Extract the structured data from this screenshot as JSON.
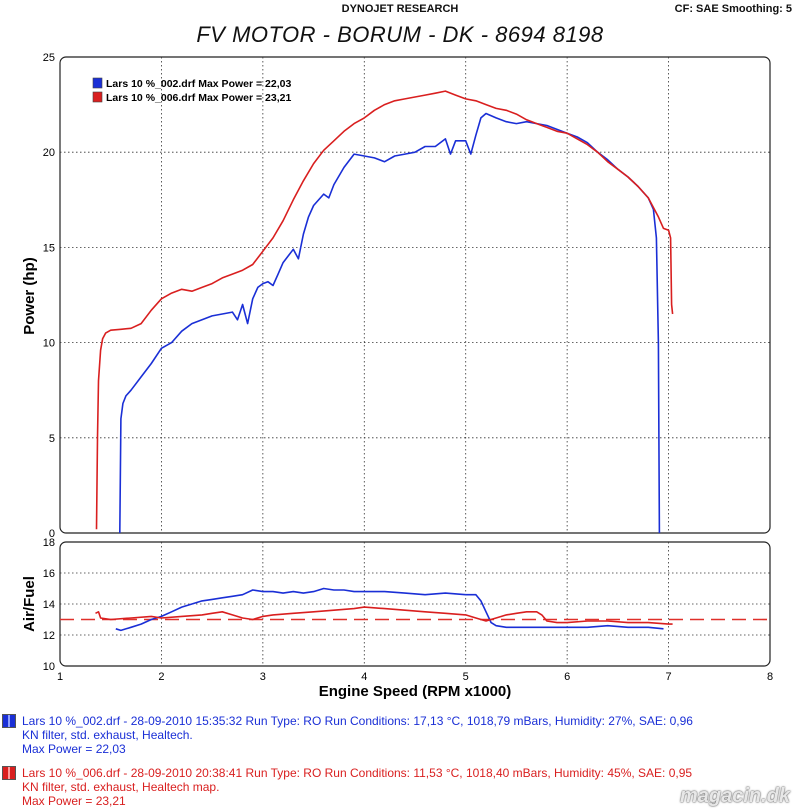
{
  "header": {
    "center": "DYNOJET RESEARCH",
    "right": "CF: SAE  Smoothing: 5"
  },
  "title": "FV MOTOR - BORUM - DK - 8694 8198",
  "colors": {
    "blue": "#1a2fd6",
    "red": "#d91f1f",
    "afr_ref": "#e0302a"
  },
  "legend": [
    {
      "label": "Lars 10 %_002.drf Max Power = 22,03",
      "color": "#1a2fd6"
    },
    {
      "label": "Lars 10 %_006.drf Max Power = 23,21",
      "color": "#d91f1f"
    }
  ],
  "chart_data": [
    {
      "type": "line",
      "ylabel": "Power (hp)",
      "xlim": [
        1,
        8
      ],
      "ylim": [
        0,
        25
      ],
      "yticks": [
        "0",
        "5",
        "10",
        "15",
        "20",
        "25"
      ],
      "grid": true,
      "legend_position": "top-left",
      "series": [
        {
          "name": "Lars 10 %_002.drf",
          "color": "#1a2fd6",
          "points": [
            [
              1.59,
              0
            ],
            [
              1.6,
              6.0
            ],
            [
              1.62,
              6.8
            ],
            [
              1.65,
              7.2
            ],
            [
              1.7,
              7.5
            ],
            [
              1.8,
              8.2
            ],
            [
              1.9,
              8.9
            ],
            [
              2.0,
              9.7
            ],
            [
              2.1,
              10.0
            ],
            [
              2.2,
              10.6
            ],
            [
              2.3,
              11.0
            ],
            [
              2.4,
              11.2
            ],
            [
              2.5,
              11.4
            ],
            [
              2.6,
              11.5
            ],
            [
              2.7,
              11.6
            ],
            [
              2.75,
              11.2
            ],
            [
              2.8,
              12.0
            ],
            [
              2.85,
              11.0
            ],
            [
              2.9,
              12.3
            ],
            [
              2.95,
              12.9
            ],
            [
              3.0,
              13.1
            ],
            [
              3.05,
              13.2
            ],
            [
              3.1,
              13.0
            ],
            [
              3.15,
              13.6
            ],
            [
              3.2,
              14.2
            ],
            [
              3.3,
              14.9
            ],
            [
              3.35,
              14.4
            ],
            [
              3.4,
              15.7
            ],
            [
              3.45,
              16.6
            ],
            [
              3.5,
              17.2
            ],
            [
              3.6,
              17.8
            ],
            [
              3.65,
              17.6
            ],
            [
              3.7,
              18.3
            ],
            [
              3.8,
              19.2
            ],
            [
              3.9,
              19.9
            ],
            [
              4.0,
              19.8
            ],
            [
              4.1,
              19.7
            ],
            [
              4.2,
              19.5
            ],
            [
              4.3,
              19.8
            ],
            [
              4.4,
              19.9
            ],
            [
              4.5,
              20.0
            ],
            [
              4.6,
              20.3
            ],
            [
              4.7,
              20.3
            ],
            [
              4.8,
              20.7
            ],
            [
              4.85,
              19.9
            ],
            [
              4.9,
              20.6
            ],
            [
              5.0,
              20.6
            ],
            [
              5.05,
              19.9
            ],
            [
              5.1,
              20.9
            ],
            [
              5.15,
              21.8
            ],
            [
              5.2,
              22.03
            ],
            [
              5.3,
              21.8
            ],
            [
              5.4,
              21.6
            ],
            [
              5.5,
              21.5
            ],
            [
              5.6,
              21.6
            ],
            [
              5.7,
              21.5
            ],
            [
              5.8,
              21.4
            ],
            [
              5.9,
              21.2
            ],
            [
              6.0,
              21.0
            ],
            [
              6.1,
              20.8
            ],
            [
              6.2,
              20.5
            ],
            [
              6.3,
              20.0
            ],
            [
              6.4,
              19.6
            ],
            [
              6.5,
              19.1
            ],
            [
              6.6,
              18.7
            ],
            [
              6.7,
              18.2
            ],
            [
              6.8,
              17.6
            ],
            [
              6.85,
              17.0
            ],
            [
              6.88,
              15.5
            ],
            [
              6.9,
              10.0
            ],
            [
              6.91,
              0
            ]
          ]
        },
        {
          "name": "Lars 10 %_006.drf",
          "color": "#d91f1f",
          "points": [
            [
              1.36,
              0.2
            ],
            [
              1.37,
              5.0
            ],
            [
              1.38,
              8.0
            ],
            [
              1.4,
              9.6
            ],
            [
              1.42,
              10.2
            ],
            [
              1.45,
              10.5
            ],
            [
              1.5,
              10.65
            ],
            [
              1.6,
              10.7
            ],
            [
              1.7,
              10.75
            ],
            [
              1.8,
              11.0
            ],
            [
              1.9,
              11.7
            ],
            [
              2.0,
              12.3
            ],
            [
              2.1,
              12.6
            ],
            [
              2.2,
              12.8
            ],
            [
              2.3,
              12.7
            ],
            [
              2.4,
              12.9
            ],
            [
              2.5,
              13.1
            ],
            [
              2.6,
              13.4
            ],
            [
              2.7,
              13.6
            ],
            [
              2.8,
              13.8
            ],
            [
              2.9,
              14.1
            ],
            [
              3.0,
              14.8
            ],
            [
              3.1,
              15.5
            ],
            [
              3.2,
              16.4
            ],
            [
              3.3,
              17.5
            ],
            [
              3.4,
              18.5
            ],
            [
              3.5,
              19.4
            ],
            [
              3.6,
              20.1
            ],
            [
              3.7,
              20.6
            ],
            [
              3.8,
              21.1
            ],
            [
              3.9,
              21.5
            ],
            [
              4.0,
              21.8
            ],
            [
              4.1,
              22.2
            ],
            [
              4.2,
              22.5
            ],
            [
              4.3,
              22.7
            ],
            [
              4.4,
              22.8
            ],
            [
              4.5,
              22.9
            ],
            [
              4.6,
              23.0
            ],
            [
              4.7,
              23.1
            ],
            [
              4.8,
              23.21
            ],
            [
              4.9,
              23.0
            ],
            [
              5.0,
              22.8
            ],
            [
              5.1,
              22.7
            ],
            [
              5.2,
              22.5
            ],
            [
              5.3,
              22.3
            ],
            [
              5.4,
              22.2
            ],
            [
              5.5,
              22.0
            ],
            [
              5.6,
              21.7
            ],
            [
              5.7,
              21.5
            ],
            [
              5.8,
              21.3
            ],
            [
              5.9,
              21.1
            ],
            [
              6.0,
              21.0
            ],
            [
              6.1,
              20.7
            ],
            [
              6.2,
              20.4
            ],
            [
              6.3,
              20.0
            ],
            [
              6.4,
              19.5
            ],
            [
              6.5,
              19.1
            ],
            [
              6.6,
              18.7
            ],
            [
              6.7,
              18.2
            ],
            [
              6.8,
              17.6
            ],
            [
              6.9,
              16.6
            ],
            [
              6.95,
              16.0
            ],
            [
              7.0,
              15.9
            ],
            [
              7.02,
              15.5
            ],
            [
              7.03,
              12.0
            ],
            [
              7.04,
              11.5
            ]
          ]
        }
      ]
    },
    {
      "type": "line",
      "ylabel": "Air/Fuel",
      "xlabel": "Engine Speed (RPM x1000)",
      "xlim": [
        1,
        8
      ],
      "ylim": [
        10,
        18
      ],
      "xticks": [
        "1",
        "2",
        "3",
        "4",
        "5",
        "6",
        "7",
        "8"
      ],
      "yticks": [
        "10",
        "12",
        "14",
        "16",
        "18"
      ],
      "grid": true,
      "reference_line": 13.0,
      "series": [
        {
          "name": "Lars 10 %_002.drf",
          "color": "#1a2fd6",
          "points": [
            [
              1.55,
              12.4
            ],
            [
              1.6,
              12.3
            ],
            [
              1.7,
              12.5
            ],
            [
              1.8,
              12.7
            ],
            [
              1.9,
              13.0
            ],
            [
              2.0,
              13.2
            ],
            [
              2.1,
              13.5
            ],
            [
              2.2,
              13.8
            ],
            [
              2.3,
              14.0
            ],
            [
              2.4,
              14.2
            ],
            [
              2.5,
              14.3
            ],
            [
              2.6,
              14.4
            ],
            [
              2.7,
              14.5
            ],
            [
              2.8,
              14.6
            ],
            [
              2.9,
              14.9
            ],
            [
              3.0,
              14.8
            ],
            [
              3.1,
              14.8
            ],
            [
              3.2,
              14.7
            ],
            [
              3.3,
              14.8
            ],
            [
              3.4,
              14.7
            ],
            [
              3.5,
              14.8
            ],
            [
              3.6,
              15.0
            ],
            [
              3.7,
              14.9
            ],
            [
              3.8,
              14.9
            ],
            [
              3.9,
              14.8
            ],
            [
              4.0,
              14.8
            ],
            [
              4.2,
              14.8
            ],
            [
              4.4,
              14.7
            ],
            [
              4.6,
              14.6
            ],
            [
              4.8,
              14.7
            ],
            [
              5.0,
              14.6
            ],
            [
              5.1,
              14.6
            ],
            [
              5.15,
              14.2
            ],
            [
              5.2,
              13.5
            ],
            [
              5.25,
              12.8
            ],
            [
              5.3,
              12.6
            ],
            [
              5.4,
              12.5
            ],
            [
              5.6,
              12.5
            ],
            [
              5.8,
              12.5
            ],
            [
              6.0,
              12.5
            ],
            [
              6.2,
              12.5
            ],
            [
              6.4,
              12.6
            ],
            [
              6.6,
              12.5
            ],
            [
              6.8,
              12.5
            ],
            [
              6.95,
              12.4
            ]
          ]
        },
        {
          "name": "Lars 10 %_006.drf",
          "color": "#d91f1f",
          "points": [
            [
              1.35,
              13.4
            ],
            [
              1.38,
              13.5
            ],
            [
              1.4,
              13.1
            ],
            [
              1.5,
              13.0
            ],
            [
              1.7,
              13.1
            ],
            [
              1.9,
              13.2
            ],
            [
              2.0,
              13.1
            ],
            [
              2.2,
              13.2
            ],
            [
              2.4,
              13.3
            ],
            [
              2.5,
              13.4
            ],
            [
              2.6,
              13.5
            ],
            [
              2.7,
              13.3
            ],
            [
              2.8,
              13.1
            ],
            [
              2.9,
              13.0
            ],
            [
              3.0,
              13.2
            ],
            [
              3.1,
              13.3
            ],
            [
              3.3,
              13.4
            ],
            [
              3.5,
              13.5
            ],
            [
              3.7,
              13.6
            ],
            [
              3.9,
              13.7
            ],
            [
              4.0,
              13.8
            ],
            [
              4.2,
              13.7
            ],
            [
              4.4,
              13.6
            ],
            [
              4.6,
              13.5
            ],
            [
              4.8,
              13.4
            ],
            [
              5.0,
              13.3
            ],
            [
              5.1,
              13.1
            ],
            [
              5.2,
              12.9
            ],
            [
              5.3,
              13.1
            ],
            [
              5.4,
              13.3
            ],
            [
              5.5,
              13.4
            ],
            [
              5.6,
              13.5
            ],
            [
              5.7,
              13.5
            ],
            [
              5.75,
              13.3
            ],
            [
              5.8,
              12.9
            ],
            [
              5.9,
              12.8
            ],
            [
              6.0,
              12.8
            ],
            [
              6.2,
              12.9
            ],
            [
              6.4,
              12.9
            ],
            [
              6.6,
              12.8
            ],
            [
              6.8,
              12.8
            ],
            [
              7.0,
              12.7
            ],
            [
              7.04,
              12.7
            ]
          ]
        }
      ]
    }
  ],
  "run_info": [
    {
      "line1": "Lars 10 %_002.drf - 28-09-2010 15:35:32  Run Type: RO  Run Conditions: 17,13 °C, 1018,79 mBars,  Humidity:  27%, SAE: 0,96",
      "line2": "KN filter, std. exhaust, Healtech.",
      "line3": "Max Power = 22,03"
    },
    {
      "line1": "Lars 10 %_006.drf - 28-09-2010 20:38:41  Run Type: RO  Run Conditions: 11,53 °C, 1018,40 mBars,  Humidity:  45%, SAE: 0,95",
      "line2": "KN filter, std. exhaust, Healtech map.",
      "line3": "Max Power = 23,21"
    }
  ],
  "watermark": "magacin.dk"
}
